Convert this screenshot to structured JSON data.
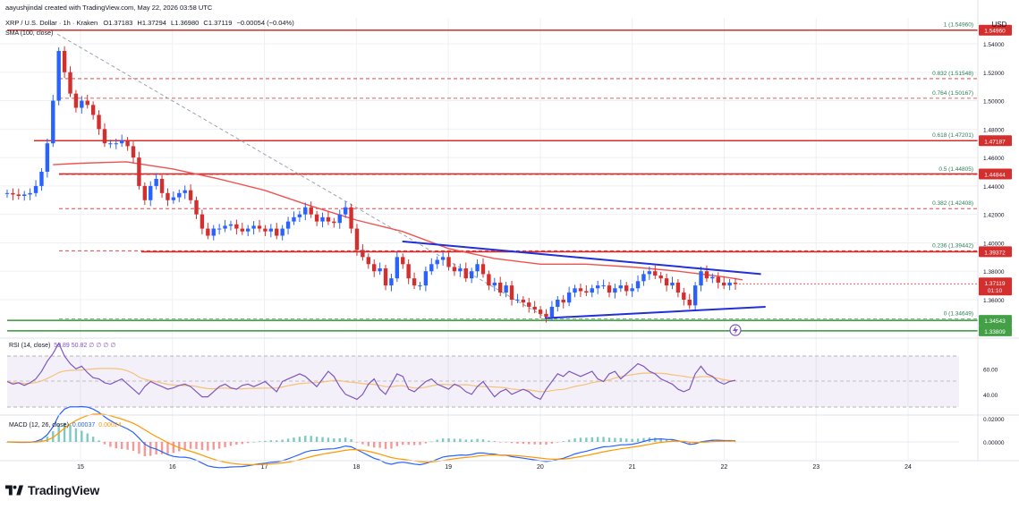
{
  "header": {
    "created_by": "aayushjindal created with TradingView.com, May 22, 2026 03:58 UTC",
    "symbol_line": "XRP / U.S. Dollar · 1h · Kraken",
    "ohlc": {
      "o_label": "O",
      "o": "1.37183",
      "h_label": "H",
      "h": "1.37294",
      "l_label": "L",
      "l": "1.36980",
      "c_label": "C",
      "c": "1.37119",
      "change": "−0.00054 (−0.04%)"
    },
    "sma_label": "SMA (100, close)"
  },
  "currency": "USD",
  "brand": "TradingView",
  "colors": {
    "up": "#2962ff",
    "down": "#d32f2f",
    "sma": "#ef5350",
    "trend": "#2130d8",
    "fib": "#d32f2f",
    "support": "#43a047",
    "rsi": "#7e57c2",
    "rsi_ma": "#f6c177",
    "grid": "#eef0f3",
    "text": "#131722",
    "fib_text": "#2a7f54"
  },
  "rsi_panel": {
    "label": "RSI (14, close)",
    "values_text": "50.89  50.82  ∅  ∅  ∅  ∅"
  },
  "macd_panel": {
    "label": "MACD (12, 26, close)",
    "v1": "0.00037",
    "v2": "0.00024"
  },
  "chart_data": [
    {
      "type": "candlestick",
      "title": "XRP / U.S. Dollar · 1h · Kraken",
      "x_labels": [
        "15",
        "16",
        "17",
        "18",
        "19",
        "20",
        "21",
        "22",
        "23",
        "24"
      ],
      "y_ticks": [
        "1.54000",
        "1.52000",
        "1.50000",
        "1.48000",
        "1.46000",
        "1.44000",
        "1.42000",
        "1.40000",
        "1.38000",
        "1.36000"
      ],
      "ylim": [
        1.332,
        1.562
      ],
      "grid": true,
      "last_price": "1.37119",
      "countdown": "01:10",
      "price_tags": [
        {
          "text": "1.54960",
          "value": 1.5496
        },
        {
          "text": "1.47187",
          "value": 1.47187
        },
        {
          "text": "1.44844",
          "value": 1.44844
        },
        {
          "text": "1.39372",
          "value": 1.39372
        },
        {
          "text": "1.34543",
          "value": 1.34543
        },
        {
          "text": "1.33809",
          "value": 1.33809
        }
      ],
      "fib_levels": [
        {
          "label": "1 (1.54960)",
          "value": 1.5496
        },
        {
          "label": "0.832 (1.51548)",
          "value": 1.51548
        },
        {
          "label": "0.764 (1.50167)",
          "value": 1.50167
        },
        {
          "label": "0.618 (1.47201)",
          "value": 1.47201
        },
        {
          "label": "0.5 (1.44805)",
          "value": 1.44805
        },
        {
          "label": "0.382 (1.42408)",
          "value": 1.42408
        },
        {
          "label": "0.236 (1.39442)",
          "value": 1.39442
        },
        {
          "label": "0 (1.34649)",
          "value": 1.34649
        }
      ],
      "horizontal_lines": [
        {
          "name": "resistance-1",
          "value": 1.5496,
          "color": "#d32f2f"
        },
        {
          "name": "resistance-2",
          "value": 1.47187,
          "color": "#d32f2f"
        },
        {
          "name": "resistance-3",
          "value": 1.44844,
          "color": "#d32f2f"
        },
        {
          "name": "resistance-4",
          "value": 1.39372,
          "color": "#d32f2f"
        },
        {
          "name": "support-1",
          "value": 1.34543,
          "color": "#43a047"
        },
        {
          "name": "support-2",
          "value": 1.33809,
          "color": "#43a047"
        }
      ],
      "trendlines": [
        {
          "name": "upper-trendline",
          "from": [
            18.5,
            1.401
          ],
          "to": [
            22.4,
            1.378
          ]
        },
        {
          "name": "lower-trendline",
          "from": [
            20.05,
            1.347
          ],
          "to": [
            22.45,
            1.355
          ]
        }
      ],
      "sma100": [
        [
          14.7,
          1.455
        ],
        [
          15.0,
          1.456
        ],
        [
          15.5,
          1.457
        ],
        [
          16.0,
          1.452
        ],
        [
          16.5,
          1.445
        ],
        [
          17.0,
          1.437
        ],
        [
          17.5,
          1.426
        ],
        [
          18.0,
          1.416
        ],
        [
          18.5,
          1.408
        ],
        [
          19.0,
          1.396
        ],
        [
          19.5,
          1.389
        ],
        [
          20.0,
          1.385
        ],
        [
          20.5,
          1.385
        ],
        [
          21.0,
          1.383
        ],
        [
          21.5,
          1.38
        ],
        [
          22.0,
          1.376
        ],
        [
          22.2,
          1.374
        ]
      ],
      "candles_close": [
        1.435,
        1.434,
        1.433,
        1.434,
        1.435,
        1.44,
        1.45,
        1.47,
        1.5,
        1.535,
        1.52,
        1.505,
        1.495,
        1.5,
        1.497,
        1.49,
        1.48,
        1.47,
        1.47,
        1.47,
        1.472,
        1.468,
        1.46,
        1.44,
        1.43,
        1.44,
        1.445,
        1.435,
        1.43,
        1.432,
        1.435,
        1.437,
        1.43,
        1.42,
        1.41,
        1.405,
        1.41,
        1.41,
        1.412,
        1.413,
        1.41,
        1.408,
        1.41,
        1.412,
        1.41,
        1.408,
        1.41,
        1.405,
        1.41,
        1.415,
        1.418,
        1.42,
        1.425,
        1.42,
        1.415,
        1.418,
        1.415,
        1.414,
        1.42,
        1.425,
        1.41,
        1.395,
        1.39,
        1.385,
        1.38,
        1.382,
        1.37,
        1.375,
        1.39,
        1.385,
        1.375,
        1.37,
        1.37,
        1.38,
        1.385,
        1.388,
        1.39,
        1.383,
        1.38,
        1.382,
        1.375,
        1.38,
        1.385,
        1.378,
        1.37,
        1.372,
        1.365,
        1.37,
        1.36,
        1.36,
        1.358,
        1.355,
        1.353,
        1.35,
        1.348,
        1.355,
        1.36,
        1.358,
        1.365,
        1.368,
        1.366,
        1.365,
        1.368,
        1.37,
        1.37,
        1.365,
        1.368,
        1.37,
        1.366,
        1.368,
        1.373,
        1.378,
        1.38,
        1.377,
        1.375,
        1.37,
        1.372,
        1.365,
        1.36,
        1.356,
        1.37,
        1.38,
        1.375,
        1.376,
        1.372,
        1.37,
        1.372,
        1.371
      ],
      "rsi": {
        "label": "RSI (14, close)",
        "y_ticks": [
          "60.00",
          "40.00"
        ],
        "ylim": [
          10,
          90
        ],
        "band": [
          30,
          70
        ],
        "values": [
          50,
          48,
          49,
          47,
          49,
          52,
          58,
          66,
          72,
          80,
          70,
          64,
          60,
          62,
          57,
          53,
          52,
          49,
          48,
          50,
          52,
          48,
          44,
          40,
          46,
          50,
          48,
          46,
          44,
          45,
          47,
          48,
          46,
          42,
          38,
          38,
          42,
          46,
          48,
          45,
          44,
          47,
          48,
          46,
          48,
          50,
          46,
          42,
          50,
          52,
          54,
          56,
          54,
          50,
          46,
          52,
          58,
          54,
          46,
          40,
          38,
          36,
          40,
          48,
          52,
          44,
          40,
          48,
          56,
          54,
          44,
          42,
          46,
          50,
          52,
          48,
          46,
          44,
          48,
          46,
          42,
          40,
          46,
          50,
          44,
          38,
          42,
          44,
          40,
          42,
          44,
          42,
          38,
          36,
          44,
          50,
          56,
          54,
          58,
          56,
          54,
          56,
          58,
          52,
          50,
          56,
          58,
          52,
          56,
          60,
          64,
          62,
          58,
          56,
          52,
          50,
          48,
          44,
          42,
          44,
          56,
          62,
          56,
          54,
          50,
          48,
          50,
          51
        ]
      },
      "macd": {
        "label": "MACD (12, 26, close)",
        "y_ticks": [
          "0.02000",
          "0.00000"
        ],
        "ylim": [
          -0.02,
          0.035
        ]
      }
    }
  ]
}
